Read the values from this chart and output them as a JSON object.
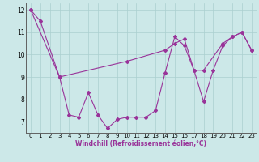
{
  "xlabel": "Windchill (Refroidissement éolien,°C)",
  "x_line1": [
    0,
    1,
    3,
    4,
    5,
    6,
    7,
    8,
    9,
    10,
    11,
    12,
    13,
    14,
    15,
    16,
    17,
    18,
    19,
    20,
    21,
    22,
    23
  ],
  "y_line1": [
    12,
    11.5,
    9,
    7.3,
    7.2,
    8.3,
    7.3,
    6.7,
    7.1,
    7.2,
    7.2,
    7.2,
    7.5,
    9.2,
    10.8,
    10.4,
    9.3,
    7.9,
    9.3,
    10.4,
    10.8,
    11.0,
    10.2
  ],
  "x_line2": [
    0,
    3,
    10,
    14,
    15,
    16,
    17,
    18,
    20,
    21,
    22,
    23
  ],
  "y_line2": [
    12,
    9,
    9.7,
    10.2,
    10.5,
    10.7,
    9.3,
    9.3,
    10.5,
    10.8,
    11.0,
    10.2
  ],
  "line_color": "#993399",
  "bg_color": "#cce8e8",
  "grid_color": "#aacfcf",
  "xlim": [
    -0.5,
    23.5
  ],
  "ylim": [
    6.5,
    12.3
  ],
  "yticks": [
    7,
    8,
    9,
    10,
    11,
    12
  ],
  "xticks": [
    0,
    1,
    2,
    3,
    4,
    5,
    6,
    7,
    8,
    9,
    10,
    11,
    12,
    13,
    14,
    15,
    16,
    17,
    18,
    19,
    20,
    21,
    22,
    23
  ],
  "tick_fontsize": 5.0,
  "xlabel_fontsize": 5.5,
  "marker_size": 2.0,
  "line_width": 0.8
}
